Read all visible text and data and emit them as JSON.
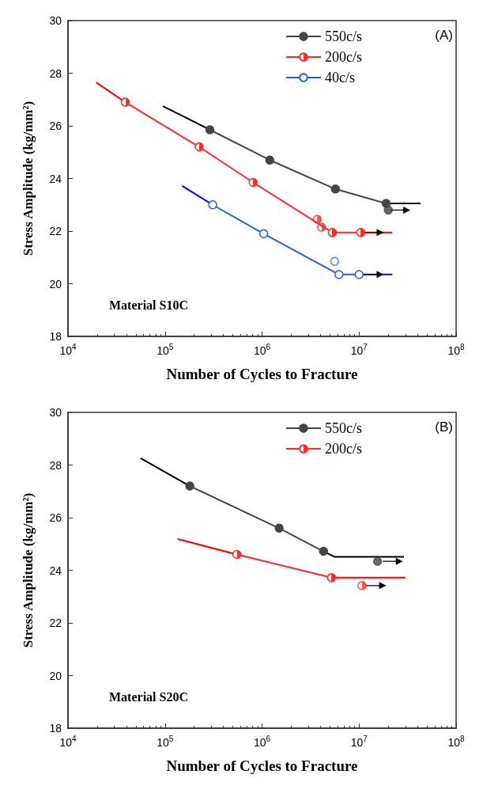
{
  "chart_data": [
    {
      "type": "line",
      "xlabel": "Number of Cycles to Fracture",
      "ylabel": "Stress Amplitude (kg/mm²)",
      "annotations": [
        "(A)",
        "Material S10C"
      ],
      "log": "x",
      "grid": false,
      "legend": "top right",
      "xlim": [
        10000,
        100000000
      ],
      "xticks": [
        {
          "value": 10000,
          "label": "10$^{4}$"
        },
        {
          "value": 100000,
          "label": "10$^{5}$"
        },
        {
          "value": 1000000,
          "label": "10$^{6}$"
        },
        {
          "value": 10000000,
          "label": "10$^{7}$"
        },
        {
          "value": 100000000,
          "label": "10$^{8}$"
        }
      ],
      "ylim": [
        18,
        30
      ],
      "yticks": [
        18,
        20,
        22,
        24,
        26,
        28,
        30
      ],
      "series": [
        {
          "color": "#000000",
          "marker": "none",
          "x": [
            95000,
            290000
          ],
          "values": [
            26.75,
            25.85
          ]
        },
        {
          "color": "#000000",
          "marker": "none",
          "x": [
            19000000,
            43000000
          ],
          "values": [
            23.05,
            23.05
          ]
        },
        {
          "name": "550c/s",
          "color": "#454545",
          "marker": "circle",
          "x": [
            290000,
            1200000,
            5700000,
            19000000
          ],
          "values": [
            25.85,
            24.7,
            23.6,
            23.05
          ]
        },
        {
          "type": "scatter",
          "color": "#454545",
          "marker": "circle",
          "x": [
            20000000
          ],
          "values": [
            22.8
          ]
        },
        {
          "color": "#000000",
          "marker": "triangle",
          "x": [
            21000000,
            31000000
          ],
          "values": [
            22.8,
            22.8
          ]
        },
        {
          "color": "#ff0000",
          "marker": "none",
          "x": [
            19500,
            39000
          ],
          "values": [
            27.65,
            26.9
          ]
        },
        {
          "color": "#ff0000",
          "marker": "none",
          "x": [
            10400000,
            22000000
          ],
          "values": [
            21.95,
            21.95
          ]
        },
        {
          "name": "200c/s",
          "color": "#ff2a2a",
          "marker": "circle",
          "x": [
            39000,
            225000,
            810000,
            5300000,
            10400000
          ],
          "values": [
            26.9,
            25.2,
            23.85,
            21.95,
            21.95
          ]
        },
        {
          "type": "scatter",
          "color": "#ff2a2a",
          "marker": "circle",
          "x": [
            3700000,
            4100000
          ],
          "values": [
            22.45,
            22.15
          ]
        },
        {
          "color": "#000000",
          "marker": "triangle",
          "x": [
            11000000,
            16500000
          ],
          "values": [
            21.95,
            21.95
          ]
        },
        {
          "color": "#0000ff",
          "marker": "none",
          "x": [
            150000,
            310000
          ],
          "values": [
            23.72,
            23.0
          ]
        },
        {
          "color": "#0000ff",
          "marker": "none",
          "x": [
            10000000,
            22000000
          ],
          "values": [
            20.35,
            20.35
          ]
        },
        {
          "name": "40c/s",
          "color": "#1f5fe6",
          "marker": "circle",
          "x": [
            310000,
            1040000,
            6200000,
            10000000
          ],
          "values": [
            23.0,
            21.9,
            20.35,
            20.35
          ]
        },
        {
          "type": "scatter",
          "color": "#1f5fe6",
          "marker": "circle",
          "x": [
            5600000
          ],
          "values": [
            20.85
          ]
        },
        {
          "color": "#000000",
          "marker": "triangle",
          "x": [
            10500000,
            16500000
          ],
          "values": [
            20.35,
            20.35
          ]
        }
      ]
    },
    {
      "type": "line",
      "xlabel": "Number of Cycles to Fracture",
      "ylabel": "Stress Amplitude (kg/mm²)",
      "annotations": [
        "(B)",
        "Material S20C"
      ],
      "log": "x",
      "grid": false,
      "legend": "top right",
      "xlim": [
        10000,
        100000000
      ],
      "xticks": [
        {
          "value": 10000,
          "label": "10$^{4}$"
        },
        {
          "value": 100000,
          "label": "10$^{5}$"
        },
        {
          "value": 1000000,
          "label": "10$^{6}$"
        },
        {
          "value": 10000000,
          "label": "10$^{7}$"
        },
        {
          "value": 100000000,
          "label": "10$^{8}$"
        }
      ],
      "ylim": [
        18,
        30
      ],
      "yticks": [
        18,
        20,
        22,
        24,
        26,
        28,
        30
      ],
      "series": [
        {
          "color": "#000000",
          "marker": "none",
          "x": [
            56000,
            180000
          ],
          "values": [
            28.26,
            27.2
          ]
        },
        {
          "color": "#000000",
          "marker": "none",
          "x": [
            4300000,
            5600000,
            29000000
          ],
          "values": [
            24.72,
            24.51,
            24.51
          ]
        },
        {
          "name": "550c/s",
          "color": "#454545",
          "marker": "circle",
          "x": [
            180000,
            1500000,
            4300000
          ],
          "values": [
            27.2,
            25.6,
            24.72
          ]
        },
        {
          "type": "scatter",
          "color": "#454545",
          "marker": "circle",
          "x": [
            15500000
          ],
          "values": [
            24.34
          ]
        },
        {
          "color": "#000000",
          "marker": "triangle",
          "x": [
            17500000,
            26000000
          ],
          "values": [
            24.34,
            24.34
          ]
        },
        {
          "color": "#ff0000",
          "marker": "none",
          "x": [
            135000,
            550000
          ],
          "values": [
            25.19,
            24.6
          ]
        },
        {
          "color": "#ff0000",
          "marker": "none",
          "x": [
            5200000,
            30000000
          ],
          "values": [
            23.72,
            23.72
          ]
        },
        {
          "name": "200c/s",
          "color": "#ff2a2a",
          "marker": "circle",
          "x": [
            550000,
            5200000
          ],
          "values": [
            24.6,
            23.72
          ]
        },
        {
          "type": "scatter",
          "color": "#ff2a2a",
          "marker": "circle",
          "x": [
            10700000
          ],
          "values": [
            23.42
          ]
        },
        {
          "color": "#000000",
          "marker": "triangle",
          "x": [
            11500000,
            17500000
          ],
          "values": [
            23.42,
            23.42
          ]
        }
      ]
    }
  ]
}
